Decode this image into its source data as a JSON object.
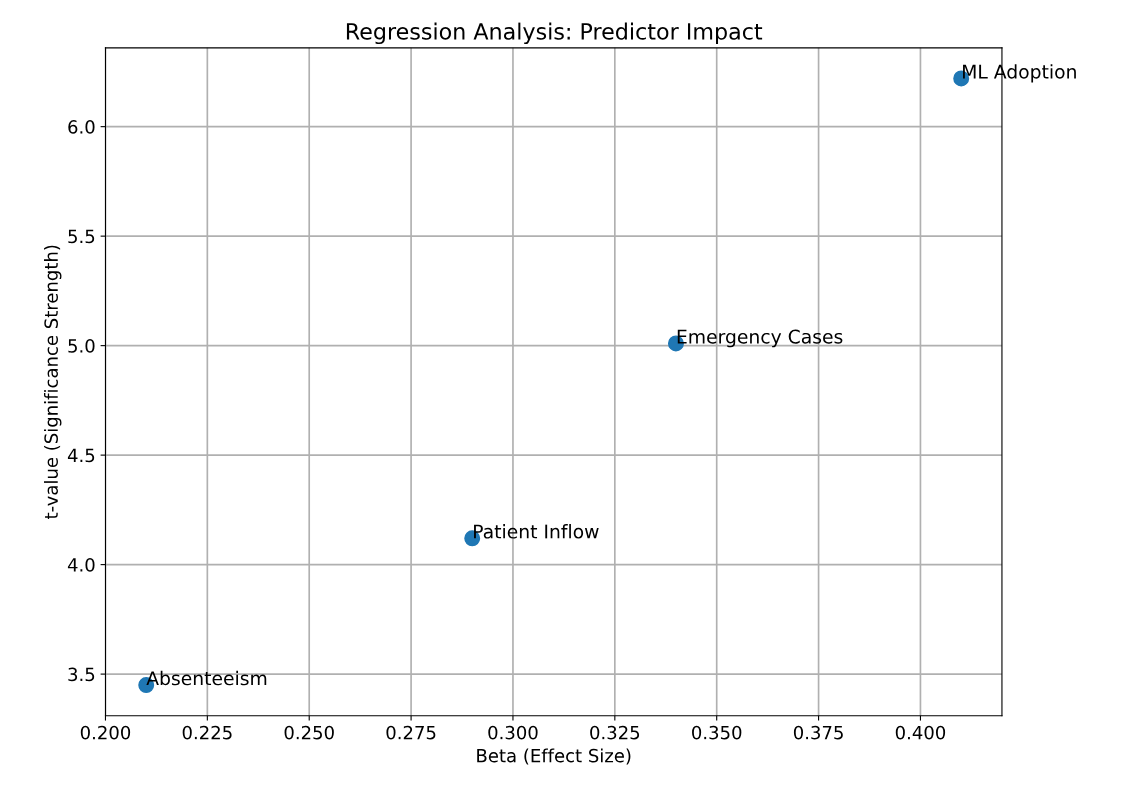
{
  "chart_data": {
    "type": "scatter",
    "title": "Regression Analysis: Predictor Impact",
    "xlabel": "Beta (Effect Size)",
    "ylabel": "t-value (Significance Strength)",
    "x": [
      0.21,
      0.29,
      0.34,
      0.41
    ],
    "values": [
      3.45,
      4.12,
      5.01,
      6.22
    ],
    "color": "#1f77b4",
    "marker": "circle",
    "grid": true,
    "xlim": [
      0.2,
      0.42
    ],
    "xticks": [
      {
        "value": 0.2,
        "label": "0.200"
      },
      {
        "value": 0.225,
        "label": "0.225"
      },
      {
        "value": 0.25,
        "label": "0.250"
      },
      {
        "value": 0.275,
        "label": "0.275"
      },
      {
        "value": 0.3,
        "label": "0.300"
      },
      {
        "value": 0.325,
        "label": "0.325"
      },
      {
        "value": 0.35,
        "label": "0.350"
      },
      {
        "value": 0.375,
        "label": "0.375"
      },
      {
        "value": 0.4,
        "label": "0.400"
      }
    ],
    "ylim": [
      3.31,
      6.36
    ],
    "yticks": [
      {
        "value": 3.5,
        "label": "3.5"
      },
      {
        "value": 4.0,
        "label": "4.0"
      },
      {
        "value": 4.5,
        "label": "4.5"
      },
      {
        "value": 5.0,
        "label": "5.0"
      },
      {
        "value": 5.5,
        "label": "5.5"
      },
      {
        "value": 6.0,
        "label": "6.0"
      }
    ],
    "annotations": [
      {
        "text": "Absenteeism",
        "x": 0.21,
        "y": 3.45
      },
      {
        "text": "Patient Inflow",
        "x": 0.29,
        "y": 4.12
      },
      {
        "text": "Emergency Cases",
        "x": 0.34,
        "y": 5.01
      },
      {
        "text": "ML Adoption",
        "x": 0.41,
        "y": 6.22
      }
    ]
  }
}
